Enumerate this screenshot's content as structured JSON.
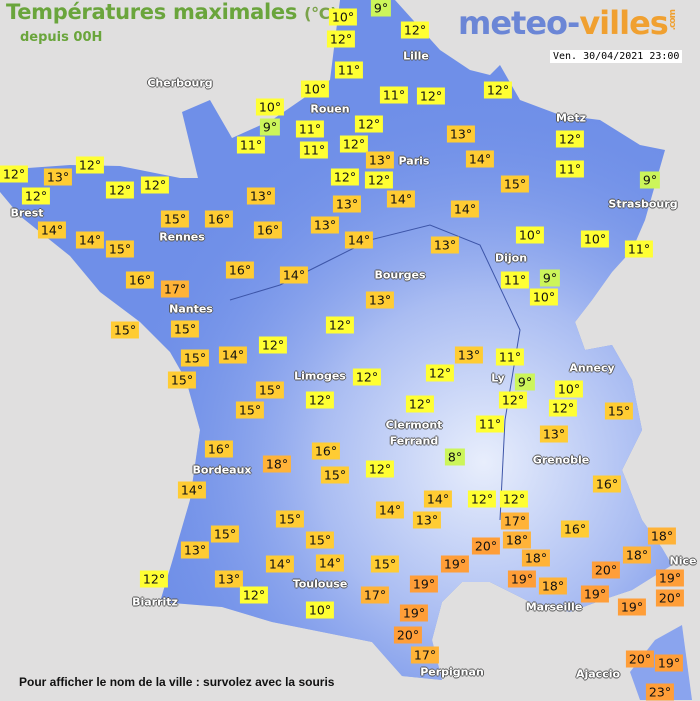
{
  "header": {
    "title": "Températures maximales",
    "unit": "(°C)",
    "subtitle": "depuis 00H",
    "logo_part1": "meteo-",
    "logo_part2": "villes",
    "logo_suffix": ".com",
    "datetime": "Ven. 30/04/2021 23:00"
  },
  "footer": {
    "hint": "Pour afficher le nom de la ville : survolez avec la souris"
  },
  "colors": {
    "background": "#e0dfdf",
    "land": "#6f8fe8",
    "cold": "#ccf55a",
    "cool": "#ffff33",
    "mild": "#ffcc33",
    "warm": "#ffb338",
    "hot": "#ff9e38"
  },
  "cities": [
    "Cherbourg",
    "Brest",
    "Rennes",
    "Nantes",
    "Rouen",
    "Lille",
    "Paris",
    "Metz",
    "Strasbourg",
    "Dijon",
    "Bourges",
    "Limoges",
    "Ly",
    "Annecy",
    "Clermont",
    "Ferrand",
    "Grenoble",
    "Bordeaux",
    "Toulouse",
    "Biarritz",
    "Perpignan",
    "Marseille",
    "Nice",
    "Ajaccio"
  ],
  "temperatures": [
    "10°",
    "9°",
    "12°",
    "12°",
    "11°",
    "10°",
    "10°",
    "9°",
    "11°",
    "11°",
    "11°",
    "12°",
    "12°",
    "11°",
    "12°",
    "12°",
    "13°",
    "12°",
    "12°",
    "14°",
    "13°",
    "14°",
    "15°",
    "12°",
    "11°",
    "9°",
    "11°",
    "10°",
    "10°",
    "11°",
    "9°",
    "10°",
    "14°",
    "13°",
    "14°",
    "13°",
    "13°",
    "16°",
    "14°",
    "13°",
    "12°",
    "12°",
    "14°",
    "16°",
    "13°",
    "16°",
    "15°",
    "12°",
    "12°",
    "12°",
    "12°",
    "13°",
    "12°",
    "14°",
    "14°",
    "15°",
    "16°",
    "17°",
    "15°",
    "15°",
    "15°",
    "15°",
    "15°",
    "15°",
    "12°",
    "12°",
    "12°",
    "13°",
    "11°",
    "9°",
    "12°",
    "10°",
    "12°",
    "15°",
    "12°",
    "11°",
    "13°",
    "8°",
    "12°",
    "16°",
    "15°",
    "18°",
    "16°",
    "14°",
    "15°",
    "15°",
    "13°",
    "15°",
    "14°",
    "14°",
    "12°",
    "13°",
    "12°",
    "10°",
    "15°",
    "17°",
    "19°",
    "19°",
    "19°",
    "20°",
    "17°",
    "14°",
    "13°",
    "14°",
    "12°",
    "12°",
    "17°",
    "20°",
    "18°",
    "18°",
    "19°",
    "18°",
    "16°",
    "16°",
    "18°",
    "18°",
    "20°",
    "19°",
    "19°",
    "19°",
    "20°",
    "20°",
    "19°",
    "23°"
  ]
}
